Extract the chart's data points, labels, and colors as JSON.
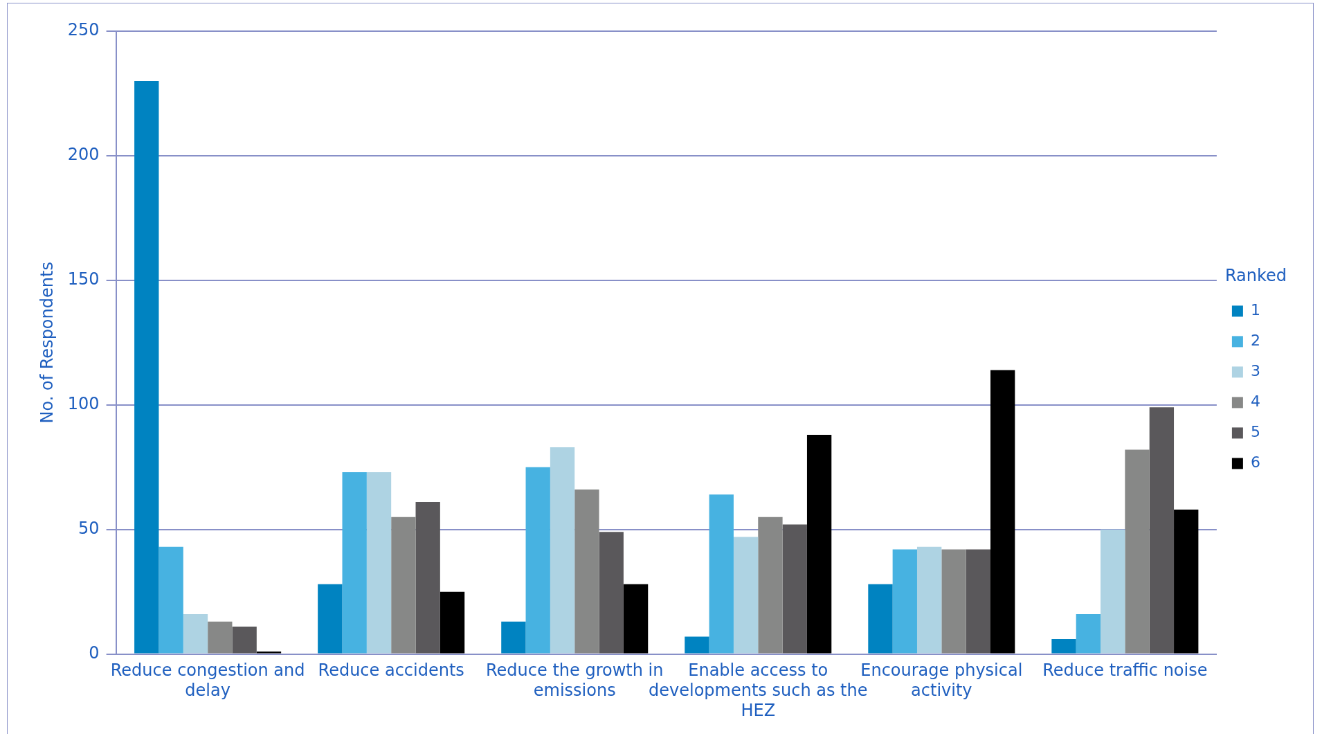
{
  "chart_data": {
    "type": "bar",
    "ylabel": "No. of Respondents",
    "legend_title": "Ranked",
    "legend": "right",
    "categories": [
      "Reduce congestion and delay",
      "Reduce accidents",
      "Reduce the growth in emissions",
      "Enable access to developments such as the HEZ",
      "Encourage physical activity",
      "Reduce traffic noise"
    ],
    "series": [
      {
        "name": "1",
        "color": "#0083c1",
        "values": [
          230,
          28,
          13,
          7,
          28,
          6
        ]
      },
      {
        "name": "2",
        "color": "#47b2e1",
        "values": [
          43,
          73,
          75,
          64,
          42,
          16
        ]
      },
      {
        "name": "3",
        "color": "#aed3e3",
        "values": [
          16,
          73,
          83,
          47,
          43,
          50
        ]
      },
      {
        "name": "4",
        "color": "#878887",
        "values": [
          13,
          55,
          66,
          55,
          42,
          82
        ]
      },
      {
        "name": "5",
        "color": "#5a585b",
        "values": [
          11,
          61,
          49,
          52,
          42,
          99
        ]
      },
      {
        "name": "6",
        "color": "#000000",
        "values": [
          1,
          25,
          28,
          88,
          114,
          58
        ]
      }
    ],
    "ylim": [
      0,
      250
    ],
    "yticks": [
      0,
      50,
      100,
      150,
      200,
      250
    ],
    "grid": "y"
  }
}
